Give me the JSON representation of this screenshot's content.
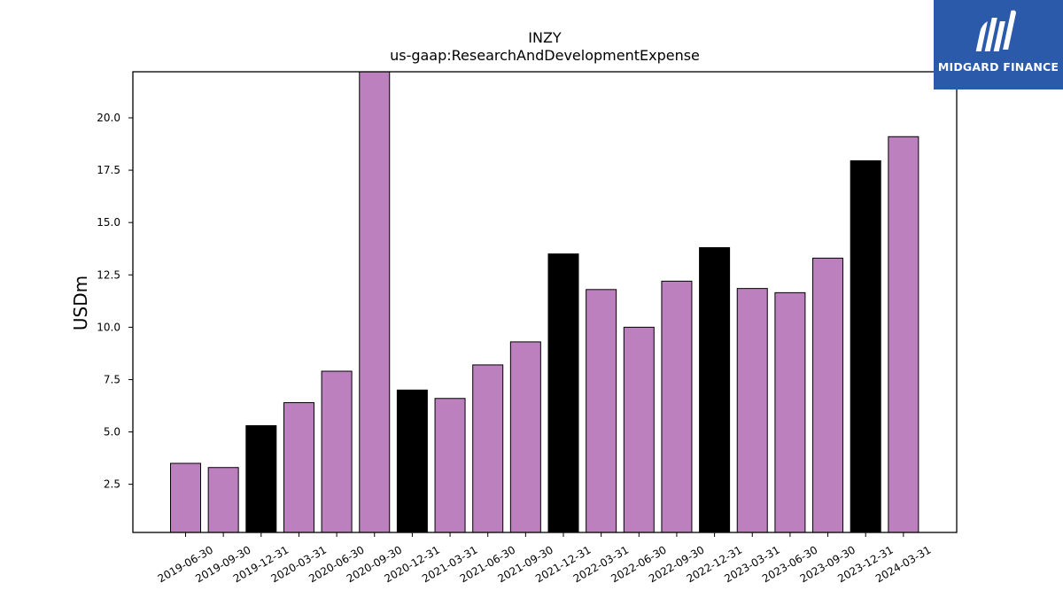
{
  "chart_data": {
    "type": "bar",
    "title": "INZY",
    "subtitle": "us-gaap:ResearchAndDevelopmentExpense",
    "xlabel": "",
    "ylabel": "USDm",
    "ylim": [
      0.2,
      22.2
    ],
    "yticks": [
      "2.5",
      "5.0",
      "7.5",
      "10.0",
      "12.5",
      "15.0",
      "17.5",
      "20.0"
    ],
    "grid": false,
    "legend": "none",
    "categories": [
      "2019-06-30",
      "2019-09-30",
      "2019-12-31",
      "2020-03-31",
      "2020-06-30",
      "2020-09-30",
      "2020-12-31",
      "2021-03-31",
      "2021-06-30",
      "2021-09-30",
      "2021-12-31",
      "2022-03-31",
      "2022-06-30",
      "2022-09-30",
      "2022-12-31",
      "2023-03-31",
      "2023-06-30",
      "2023-09-30",
      "2023-12-31",
      "2024-03-31"
    ],
    "values": [
      3.5,
      3.3,
      5.3,
      6.4,
      7.9,
      22.2,
      7.0,
      6.6,
      8.2,
      9.3,
      13.5,
      11.8,
      10.0,
      12.2,
      13.8,
      11.85,
      11.65,
      13.3,
      17.95,
      19.1
    ],
    "bar_colors": [
      "#bb80bd",
      "#bb80bd",
      "#000000",
      "#bb80bd",
      "#bb80bd",
      "#bb80bd",
      "#000000",
      "#bb80bd",
      "#bb80bd",
      "#bb80bd",
      "#000000",
      "#bb80bd",
      "#bb80bd",
      "#bb80bd",
      "#000000",
      "#bb80bd",
      "#bb80bd",
      "#bb80bd",
      "#000000",
      "#bb80bd"
    ]
  },
  "logo": {
    "text": "MIDGARD FINANCE",
    "background": "#2b5aab"
  }
}
